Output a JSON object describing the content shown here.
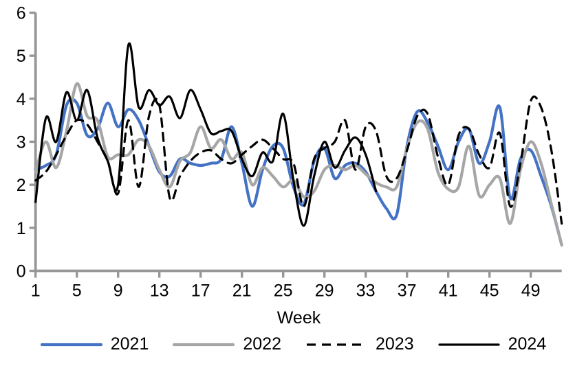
{
  "chart_data": {
    "type": "line",
    "title": "",
    "xlabel": "Week",
    "ylabel": "",
    "xlim": [
      1,
      52
    ],
    "ylim": [
      0,
      6
    ],
    "grid": false,
    "legend_position": "bottom",
    "x_tick_labels": [
      "1",
      "5",
      "9",
      "13",
      "17",
      "21",
      "25",
      "29",
      "33",
      "37",
      "41",
      "45",
      "49"
    ],
    "x_tick_weeks": [
      1,
      5,
      9,
      13,
      17,
      21,
      25,
      29,
      33,
      37,
      41,
      45,
      49
    ],
    "y_tick_labels": [
      "0",
      "1",
      "2",
      "3",
      "4",
      "5",
      "6"
    ],
    "y_tick_values": [
      0,
      1,
      2,
      3,
      4,
      5,
      6
    ],
    "x_start_week": 1,
    "series": [
      {
        "name": "2021",
        "color": "#4472C4",
        "dashed": false,
        "width": 4.2,
        "values": [
          2.35,
          2.45,
          2.7,
          3.85,
          3.9,
          3.15,
          3.3,
          3.9,
          3.35,
          3.75,
          3.5,
          2.9,
          2.3,
          2.2,
          2.6,
          2.5,
          2.45,
          2.5,
          2.6,
          3.35,
          2.5,
          1.5,
          2.35,
          2.9,
          2.85,
          1.95,
          1.55,
          2.55,
          2.85,
          2.15,
          2.45,
          2.5,
          2.3,
          1.85,
          1.45,
          1.3,
          2.9,
          3.7,
          3.45,
          2.9,
          2.35,
          3.0,
          3.3,
          2.5,
          3.0,
          3.8,
          1.7,
          2.6,
          2.8,
          2.2,
          1.5,
          0.6
        ]
      },
      {
        "name": "2022",
        "color": "#A6A6A6",
        "dashed": false,
        "width": 4.2,
        "values": [
          2.3,
          3.0,
          2.4,
          3.25,
          4.35,
          3.6,
          3.5,
          2.65,
          2.7,
          2.7,
          3.05,
          2.9,
          2.35,
          1.95,
          2.55,
          2.75,
          3.35,
          2.85,
          3.05,
          2.6,
          2.75,
          2.0,
          2.4,
          2.2,
          1.95,
          2.1,
          1.72,
          1.85,
          2.35,
          2.45,
          2.35,
          2.45,
          2.25,
          2.05,
          1.95,
          1.95,
          2.85,
          3.45,
          3.3,
          2.3,
          1.9,
          1.95,
          2.9,
          1.75,
          2.0,
          2.15,
          1.1,
          2.35,
          3.0,
          2.5,
          1.55,
          0.6
        ]
      },
      {
        "name": "2023",
        "color": "#000000",
        "dashed": true,
        "width": 3.2,
        "values": [
          2.1,
          2.3,
          2.7,
          3.15,
          3.5,
          3.4,
          3.0,
          2.55,
          1.8,
          3.5,
          1.95,
          3.6,
          3.85,
          1.7,
          2.2,
          2.55,
          2.75,
          2.8,
          2.6,
          2.5,
          2.7,
          2.9,
          3.05,
          2.85,
          2.6,
          2.5,
          1.5,
          2.6,
          2.85,
          3.0,
          3.5,
          2.35,
          3.35,
          3.25,
          2.2,
          2.15,
          2.8,
          3.6,
          3.65,
          2.65,
          2.0,
          3.15,
          3.3,
          2.7,
          2.4,
          3.2,
          1.5,
          2.5,
          3.95,
          3.8,
          2.8,
          1.1
        ]
      },
      {
        "name": "2024",
        "color": "#000000",
        "dashed": false,
        "width": 3.2,
        "values": [
          1.6,
          3.55,
          3.0,
          4.15,
          3.5,
          4.2,
          3.1,
          2.55,
          2.0,
          5.25,
          3.8,
          4.2,
          3.85,
          4.05,
          3.55,
          4.2,
          3.75,
          3.2,
          3.25,
          3.25,
          2.6,
          2.2,
          2.75,
          2.55,
          3.65,
          2.1,
          1.05,
          2.2,
          3.0,
          2.4,
          2.8,
          3.1,
          2.7,
          1.85
        ]
      }
    ],
    "colors": {
      "axis": "#979797",
      "tick_text": "#000000"
    }
  }
}
